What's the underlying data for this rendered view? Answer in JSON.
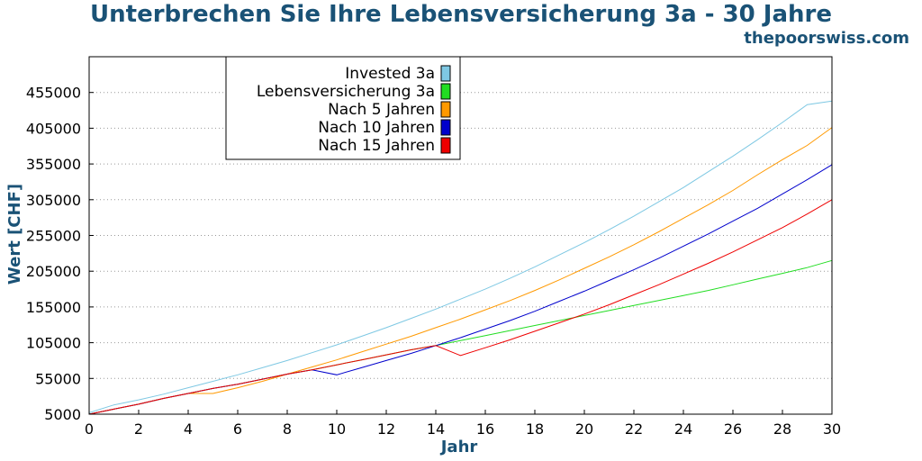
{
  "header": {
    "title": "Unterbrechen Sie Ihre Lebensversicherung 3a - 30 Jahre",
    "site": "thepoorswiss.com"
  },
  "chart_data": {
    "type": "line",
    "title": "Unterbrechen Sie Ihre Lebensversicherung 3a - 30 Jahre",
    "xlabel": "Jahr",
    "ylabel": "Wert [CHF]",
    "xlim": [
      0,
      30
    ],
    "ylim": [
      5000,
      505000
    ],
    "xticks": [
      0,
      2,
      4,
      6,
      8,
      10,
      12,
      14,
      16,
      18,
      20,
      22,
      24,
      26,
      28,
      30
    ],
    "yticks": [
      5000,
      55000,
      105000,
      155000,
      205000,
      255000,
      305000,
      355000,
      405000,
      455000
    ],
    "grid": "horizontal dotted",
    "legend_position": "top-left",
    "x": [
      0,
      1,
      2,
      3,
      4,
      5,
      6,
      7,
      8,
      9,
      10,
      11,
      12,
      13,
      14,
      15,
      16,
      17,
      18,
      19,
      20,
      21,
      22,
      23,
      24,
      25,
      26,
      27,
      28,
      29,
      30
    ],
    "series": [
      {
        "name": "Invested 3a",
        "color": "#7ec8e3",
        "values": [
          7000,
          18000,
          25000,
          33000,
          42000,
          51000,
          60000,
          70000,
          80000,
          91000,
          102000,
          114000,
          126000,
          139000,
          152000,
          166000,
          180000,
          195000,
          211000,
          228000,
          245000,
          263000,
          282000,
          302000,
          322000,
          344000,
          366000,
          389000,
          413000,
          438000,
          443000
        ]
      },
      {
        "name": "Lebensversicherung 3a",
        "color": "#22dd22",
        "values": [
          5000,
          12000,
          19000,
          27000,
          34000,
          41000,
          47000,
          54000,
          61000,
          67000,
          74000,
          81000,
          88000,
          95000,
          101000,
          108000,
          115000,
          122000,
          129000,
          136000,
          143000,
          150000,
          157000,
          164000,
          171000,
          178000,
          186000,
          194000,
          202000,
          210000,
          220000
        ]
      },
      {
        "name": "Nach 5 Jahren",
        "color": "#ff9900",
        "values": [
          5000,
          12000,
          19000,
          27000,
          34000,
          34000,
          42000,
          51000,
          61000,
          71000,
          81000,
          92000,
          103000,
          114000,
          126000,
          138000,
          151000,
          164000,
          178000,
          193000,
          209000,
          225000,
          242000,
          260000,
          279000,
          298000,
          318000,
          340000,
          361000,
          381000,
          406000
        ]
      },
      {
        "name": "Nach 10 Jahren",
        "color": "#0000cc",
        "values": [
          5000,
          12000,
          19000,
          27000,
          34000,
          41000,
          47000,
          54000,
          61000,
          67000,
          60000,
          70000,
          80000,
          90000,
          101000,
          112000,
          124000,
          136000,
          149000,
          163000,
          177000,
          192000,
          207000,
          223000,
          240000,
          257000,
          275000,
          293000,
          313000,
          333000,
          354000
        ]
      },
      {
        "name": "Nach 15 Jahren",
        "color": "#ee0000",
        "values": [
          5000,
          12000,
          19000,
          27000,
          34000,
          41000,
          47000,
          54000,
          61000,
          67000,
          74000,
          81000,
          88000,
          95000,
          101000,
          87000,
          98000,
          109000,
          121000,
          133000,
          145000,
          158000,
          172000,
          186000,
          201000,
          216000,
          232000,
          249000,
          266000,
          285000,
          305000
        ]
      }
    ]
  }
}
